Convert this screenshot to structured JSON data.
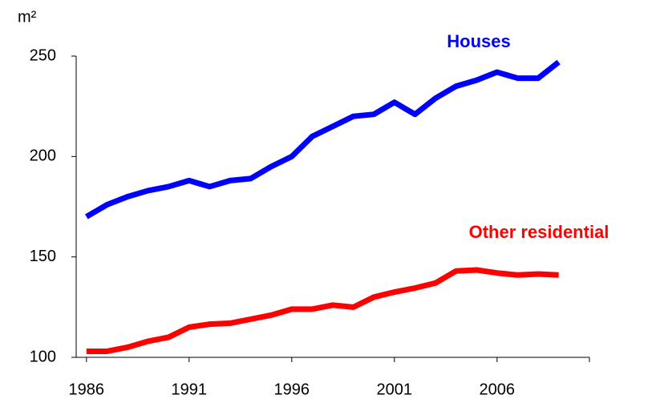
{
  "chart_data": {
    "type": "line",
    "y_label": "m²",
    "x": [
      1986,
      1987,
      1988,
      1989,
      1990,
      1991,
      1992,
      1993,
      1994,
      1995,
      1996,
      1997,
      1998,
      1999,
      2000,
      2001,
      2002,
      2003,
      2004,
      2005,
      2006,
      2007,
      2008,
      2009
    ],
    "xlim": [
      1985.5,
      2010.5
    ],
    "xticks": [
      1986,
      1991,
      1996,
      2001,
      2006
    ],
    "ylim": [
      100,
      250
    ],
    "yticks": [
      100,
      150,
      200,
      250
    ],
    "series": [
      {
        "name": "Houses",
        "color": "#0000ff",
        "values": [
          170,
          176,
          180,
          183,
          185,
          188,
          185,
          188,
          189,
          195,
          200,
          210,
          215,
          220,
          221,
          227,
          221,
          229,
          235,
          238,
          242,
          239,
          239,
          247
        ]
      },
      {
        "name": "Other residential",
        "color": "#ff0000",
        "values": [
          103,
          103,
          105,
          108,
          110,
          115,
          116.5,
          117,
          119,
          121,
          124,
          124,
          126,
          125,
          130,
          132.5,
          134.5,
          137,
          143,
          143.5,
          142,
          141,
          141.5,
          141
        ]
      }
    ]
  }
}
